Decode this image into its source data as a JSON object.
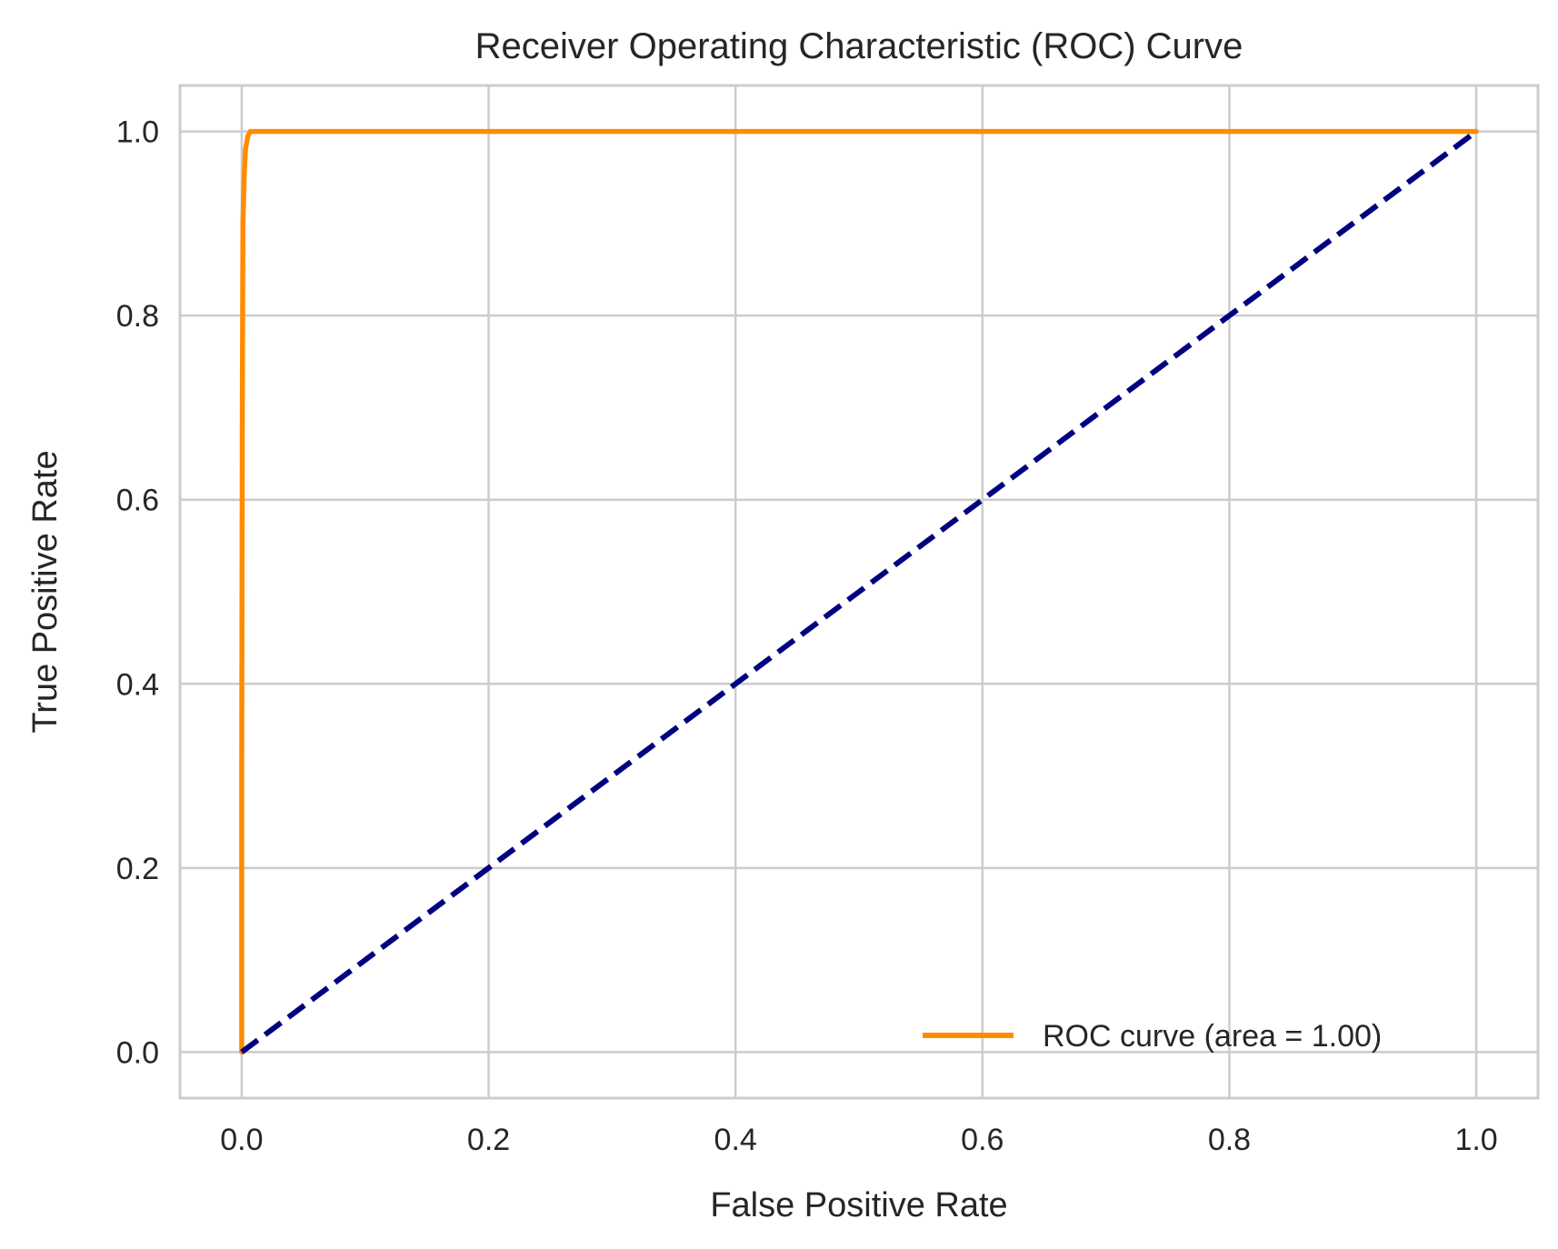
{
  "chart_data": {
    "type": "line",
    "title": "Receiver Operating Characteristic (ROC) Curve",
    "xlabel": "False Positive Rate",
    "ylabel": "True Positive Rate",
    "xlim": [
      -0.05,
      1.05
    ],
    "ylim": [
      -0.05,
      1.05
    ],
    "xticks": [
      0.0,
      0.2,
      0.4,
      0.6,
      0.8,
      1.0
    ],
    "xtick_labels": [
      "0.0",
      "0.2",
      "0.4",
      "0.6",
      "0.8",
      "1.0"
    ],
    "yticks": [
      0.0,
      0.2,
      0.4,
      0.6,
      0.8,
      1.0
    ],
    "ytick_labels": [
      "0.0",
      "0.2",
      "0.4",
      "0.6",
      "0.8",
      "1.0"
    ],
    "grid": true,
    "legend_position": "lower-right",
    "series": [
      {
        "name": "ROC curve (area = 1.00)",
        "color": "#ff8c00",
        "style": "solid",
        "in_legend": true,
        "x": [
          0.0,
          0.0,
          0.0005,
          0.001,
          0.002,
          0.003,
          0.005,
          0.007,
          1.0
        ],
        "y": [
          0.0,
          0.3,
          0.7,
          0.9,
          0.95,
          0.98,
          0.995,
          1.0,
          1.0
        ]
      },
      {
        "color": "#000080",
        "style": "dashed",
        "in_legend": false,
        "x": [
          0.0,
          1.0
        ],
        "y": [
          0.0,
          1.0
        ]
      }
    ]
  }
}
